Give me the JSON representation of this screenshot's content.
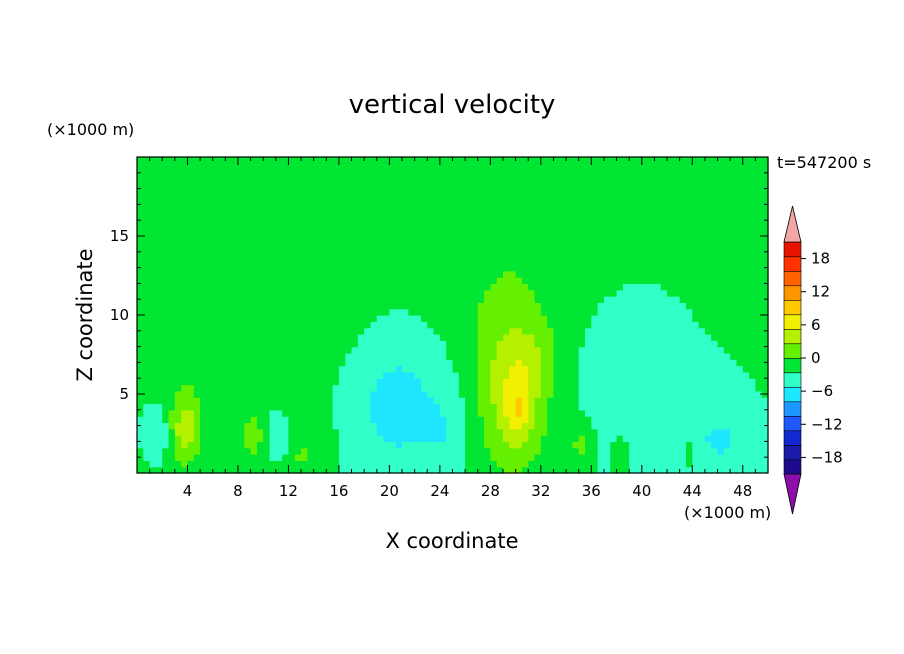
{
  "chart_data": {
    "type": "heatmap",
    "title": "vertical velocity",
    "xlabel": "X coordinate",
    "ylabel": "Z coordinate",
    "x_unit": "(×1000 m)",
    "y_unit": "(×1000 m)",
    "time_label": "t=547200 s",
    "xlim": [
      0,
      50
    ],
    "ylim": [
      0,
      20
    ],
    "x_ticks": [
      4,
      8,
      12,
      16,
      20,
      24,
      28,
      32,
      36,
      40,
      44,
      48
    ],
    "y_ticks": [
      5,
      10,
      15
    ],
    "grid": false,
    "colorbar": {
      "placement": "right",
      "range": [
        -21,
        21
      ],
      "step": 3,
      "tick_values": [
        18,
        12,
        6,
        0,
        -6,
        -12,
        -18
      ],
      "over_color": "#f4a6a6",
      "under_color": "#8b0fa8",
      "colors": [
        "#1e0a8c",
        "#1a1aa8",
        "#1428d2",
        "#1e5aff",
        "#1e96ff",
        "#1ee6ff",
        "#32ffc8",
        "#00e632",
        "#64f000",
        "#b4f000",
        "#f0f000",
        "#ffc800",
        "#ff9600",
        "#ff6400",
        "#ff3200",
        "#e61400"
      ]
    },
    "background_value": 0.5,
    "features": [
      {
        "kind": "updraft",
        "x": 3.8,
        "z": 2.8,
        "sx": 0.9,
        "sz": 1.6,
        "amp": 7
      },
      {
        "kind": "updraft",
        "x": 9.2,
        "z": 2.4,
        "sx": 0.7,
        "sz": 1.0,
        "amp": 4.5
      },
      {
        "kind": "updraft",
        "x": 13.0,
        "z": 1.2,
        "sx": 0.5,
        "sz": 0.8,
        "amp": 3
      },
      {
        "kind": "updraft",
        "x": 15.0,
        "z": 1.6,
        "sx": 0.5,
        "sz": 0.8,
        "amp": 3
      },
      {
        "kind": "updraft",
        "x": 29.8,
        "z": 5.0,
        "sx": 2.0,
        "sz": 3.5,
        "amp": 7
      },
      {
        "kind": "updraft",
        "x": 30.2,
        "z": 4.0,
        "sx": 0.8,
        "sz": 1.4,
        "amp": 5
      },
      {
        "kind": "updraft",
        "x": 31.6,
        "z": 7.2,
        "sx": 1.4,
        "sz": 1.4,
        "amp": 2
      },
      {
        "kind": "updraft",
        "x": 35.2,
        "z": 1.8,
        "sx": 0.6,
        "sz": 1.0,
        "amp": 4
      },
      {
        "kind": "updraft",
        "x": 38.2,
        "z": 1.2,
        "sx": 0.5,
        "sz": 0.8,
        "amp": 2.5
      },
      {
        "kind": "updraft",
        "x": 43.8,
        "z": 1.4,
        "sx": 0.5,
        "sz": 0.8,
        "amp": 2.5
      },
      {
        "kind": "updraft",
        "x": 29.2,
        "z": 10.0,
        "sx": 3.2,
        "sz": 3.2,
        "amp": 1.8
      },
      {
        "kind": "downdraft",
        "x": 20.5,
        "z": 4.5,
        "sx": 3.0,
        "sz": 3.5,
        "amp": -5
      },
      {
        "kind": "downdraft",
        "x": 41.0,
        "z": 5.5,
        "sx": 4.5,
        "sz": 4.0,
        "amp": -2.5
      },
      {
        "kind": "downdraft",
        "x": 1.6,
        "z": 2.6,
        "sx": 0.8,
        "sz": 1.2,
        "amp": -3.5
      },
      {
        "kind": "downdraft",
        "x": 46.5,
        "z": 2.0,
        "sx": 2.0,
        "sz": 1.6,
        "amp": -3
      },
      {
        "kind": "downdraft",
        "x": 24.5,
        "z": 2.5,
        "sx": 1.2,
        "sz": 2.0,
        "amp": -2
      },
      {
        "kind": "downdraft",
        "x": 11.0,
        "z": 2.5,
        "sx": 0.9,
        "sz": 1.2,
        "amp": -2
      },
      {
        "kind": "weak-updraft",
        "x": 15.5,
        "z": 9.0,
        "sx": 5.0,
        "sz": 4.5,
        "amp": 1.2
      },
      {
        "kind": "weak-updraft",
        "x": 2.5,
        "z": 13.0,
        "sx": 2.2,
        "sz": 3.5,
        "amp": 1.2
      },
      {
        "kind": "weak-updraft",
        "x": 46.8,
        "z": 12.5,
        "sx": 2.8,
        "sz": 3.5,
        "amp": 1.2
      },
      {
        "kind": "weak-updraft",
        "x": 29.0,
        "z": 15.5,
        "sx": 5.5,
        "sz": 2.8,
        "amp": 1.0
      },
      {
        "kind": "weak-updraft",
        "x": 8.8,
        "z": 15.0,
        "sx": 1.4,
        "sz": 1.0,
        "amp": 1.0
      },
      {
        "kind": "weak-updraft",
        "x": 42.0,
        "z": 15.0,
        "sx": 1.2,
        "sz": 1.0,
        "amp": 1.0
      },
      {
        "kind": "weak-updraft",
        "x": 4.5,
        "z": 6.5,
        "sx": 2.5,
        "sz": 2.0,
        "amp": 1.0
      }
    ]
  }
}
